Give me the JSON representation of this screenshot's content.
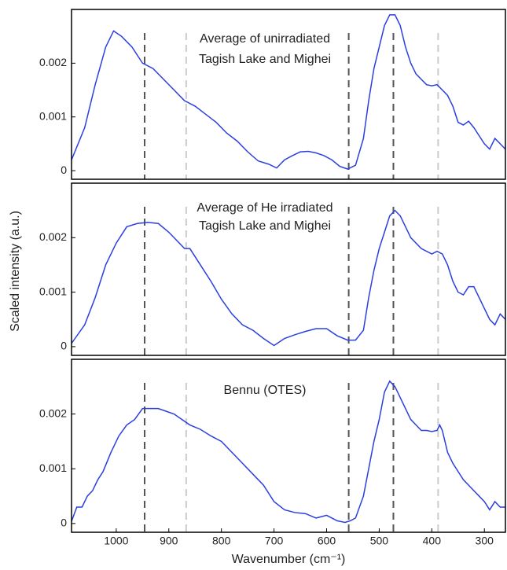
{
  "chart_data": [
    {
      "type": "line",
      "annotation": [
        "Average of unirradiated",
        "Tagish Lake and Mighei"
      ],
      "xlim": [
        1085,
        260
      ],
      "ylim": [
        -0.00016,
        0.003
      ],
      "yticks": [
        0,
        0.001,
        0.002
      ],
      "color": "#2b3fe0",
      "vlines": [
        {
          "x": 946,
          "color": "#555555"
        },
        {
          "x": 867,
          "color": "#cccccc"
        },
        {
          "x": 558,
          "color": "#555555"
        },
        {
          "x": 473,
          "color": "#555555"
        },
        {
          "x": 388,
          "color": "#cccccc"
        }
      ],
      "x": [
        1085,
        1060,
        1040,
        1020,
        1005,
        990,
        970,
        950,
        930,
        910,
        890,
        870,
        850,
        830,
        810,
        790,
        770,
        750,
        730,
        710,
        695,
        680,
        665,
        650,
        635,
        620,
        605,
        590,
        575,
        560,
        545,
        530,
        520,
        510,
        500,
        490,
        480,
        470,
        460,
        450,
        440,
        430,
        420,
        410,
        400,
        390,
        380,
        370,
        360,
        350,
        340,
        330,
        320,
        310,
        300,
        290,
        280,
        270,
        260
      ],
      "values": [
        0.0002,
        0.0008,
        0.0016,
        0.0023,
        0.0026,
        0.0025,
        0.0023,
        0.002,
        0.0019,
        0.0017,
        0.0015,
        0.0013,
        0.0012,
        0.00105,
        0.0009,
        0.0007,
        0.00055,
        0.00035,
        0.00018,
        0.00012,
        5e-05,
        0.0002,
        0.00028,
        0.00035,
        0.00036,
        0.00033,
        0.00028,
        0.0002,
        8e-05,
        3e-05,
        0.0001,
        0.0006,
        0.0013,
        0.0019,
        0.0023,
        0.0027,
        0.0029,
        0.0029,
        0.0027,
        0.0023,
        0.002,
        0.0018,
        0.0017,
        0.0016,
        0.00158,
        0.0016,
        0.0015,
        0.0014,
        0.0012,
        0.0009,
        0.00085,
        0.00092,
        0.0008,
        0.00065,
        0.0005,
        0.0004,
        0.0006,
        0.0005,
        0.0004
      ]
    },
    {
      "type": "line",
      "annotation": [
        "Average of He irradiated",
        "Tagish Lake and Mighei"
      ],
      "ylabel": "Scaled intensity (a.u.)",
      "xlim": [
        1085,
        260
      ],
      "ylim": [
        -0.00016,
        0.003
      ],
      "yticks": [
        0,
        0.001,
        0.002
      ],
      "color": "#2b3fe0",
      "vlines": [
        {
          "x": 946,
          "color": "#555555"
        },
        {
          "x": 867,
          "color": "#cccccc"
        },
        {
          "x": 558,
          "color": "#555555"
        },
        {
          "x": 473,
          "color": "#555555"
        },
        {
          "x": 388,
          "color": "#cccccc"
        }
      ],
      "x": [
        1085,
        1060,
        1040,
        1020,
        1000,
        980,
        960,
        940,
        920,
        900,
        880,
        870,
        860,
        840,
        820,
        800,
        780,
        760,
        740,
        720,
        700,
        680,
        660,
        640,
        620,
        600,
        580,
        560,
        545,
        530,
        520,
        510,
        500,
        490,
        480,
        470,
        460,
        450,
        440,
        420,
        400,
        390,
        380,
        370,
        360,
        350,
        340,
        330,
        320,
        310,
        300,
        290,
        280,
        270,
        260
      ],
      "values": [
        6e-05,
        0.0004,
        0.0009,
        0.0015,
        0.0019,
        0.0022,
        0.00226,
        0.00228,
        0.00226,
        0.0021,
        0.0019,
        0.0018,
        0.0018,
        0.0015,
        0.0012,
        0.00087,
        0.0006,
        0.0004,
        0.0003,
        0.00015,
        2e-05,
        0.00015,
        0.00022,
        0.00028,
        0.00033,
        0.00033,
        0.0002,
        0.00012,
        0.00012,
        0.0003,
        0.0009,
        0.0014,
        0.0018,
        0.0021,
        0.0024,
        0.0025,
        0.0024,
        0.0022,
        0.002,
        0.0018,
        0.0017,
        0.00175,
        0.0017,
        0.0015,
        0.0012,
        0.001,
        0.00095,
        0.0011,
        0.0011,
        0.0009,
        0.0007,
        0.0005,
        0.0004,
        0.0006,
        0.0005
      ]
    },
    {
      "type": "line",
      "annotation": [
        "Bennu (OTES)"
      ],
      "xlabel": "Wavenumber (cm⁻¹)",
      "xlim": [
        1085,
        260
      ],
      "xticks": [
        1000,
        900,
        800,
        700,
        600,
        500,
        400,
        300
      ],
      "ylim": [
        -0.00016,
        0.003
      ],
      "yticks": [
        0,
        0.001,
        0.002
      ],
      "color": "#2b3fe0",
      "vlines": [
        {
          "x": 946,
          "color": "#555555"
        },
        {
          "x": 867,
          "color": "#cccccc"
        },
        {
          "x": 558,
          "color": "#555555"
        },
        {
          "x": 473,
          "color": "#555555"
        },
        {
          "x": 388,
          "color": "#cccccc"
        }
      ],
      "x": [
        1085,
        1075,
        1065,
        1055,
        1045,
        1035,
        1025,
        1010,
        995,
        980,
        965,
        950,
        935,
        920,
        905,
        890,
        875,
        860,
        840,
        820,
        800,
        780,
        760,
        740,
        720,
        700,
        680,
        660,
        640,
        620,
        600,
        580,
        565,
        555,
        545,
        530,
        520,
        510,
        500,
        490,
        480,
        470,
        460,
        450,
        440,
        430,
        420,
        410,
        400,
        390,
        385,
        380,
        370,
        360,
        350,
        340,
        330,
        320,
        310,
        300,
        290,
        280,
        270,
        260
      ],
      "values": [
        4e-05,
        0.0003,
        0.0003,
        0.0005,
        0.0006,
        0.0008,
        0.00095,
        0.0013,
        0.0016,
        0.0018,
        0.0019,
        0.0021,
        0.0021,
        0.0021,
        0.00205,
        0.002,
        0.0019,
        0.0018,
        0.00172,
        0.0016,
        0.0015,
        0.0013,
        0.0011,
        0.0009,
        0.0007,
        0.0004,
        0.00025,
        0.0002,
        0.00018,
        0.0001,
        0.00015,
        5e-05,
        2e-05,
        5e-05,
        0.0001,
        0.0005,
        0.001,
        0.0015,
        0.0019,
        0.0024,
        0.0026,
        0.0025,
        0.0023,
        0.0021,
        0.0019,
        0.0018,
        0.0017,
        0.0017,
        0.00168,
        0.0017,
        0.0018,
        0.0017,
        0.0013,
        0.0011,
        0.00095,
        0.0008,
        0.0007,
        0.0006,
        0.0005,
        0.0004,
        0.00025,
        0.0004,
        0.0003,
        0.0003
      ]
    }
  ]
}
